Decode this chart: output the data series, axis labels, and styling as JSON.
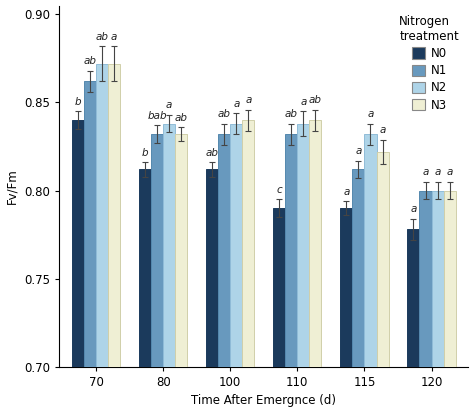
{
  "title": "",
  "xlabel": "Time After Emergnce (d)",
  "ylabel": "Fv/Fm",
  "legend_title": "Nitrogen\ntreatment",
  "legend_labels": [
    "N0",
    "N1",
    "N2",
    "N3"
  ],
  "bar_colors": [
    "#1b3a5c",
    "#6899be",
    "#aed4e8",
    "#efefd4"
  ],
  "bar_edge_colors": [
    "#1b3a5c",
    "#5588ae",
    "#90bcd8",
    "#d0cfaa"
  ],
  "x_groups": [
    70,
    80,
    100,
    110,
    115,
    120
  ],
  "values": {
    "N0": [
      0.84,
      0.812,
      0.812,
      0.79,
      0.79,
      0.778
    ],
    "N1": [
      0.862,
      0.832,
      0.832,
      0.832,
      0.812,
      0.8
    ],
    "N2": [
      0.872,
      0.838,
      0.838,
      0.838,
      0.832,
      0.8
    ],
    "N3": [
      0.872,
      0.832,
      0.84,
      0.84,
      0.822,
      0.8
    ]
  },
  "errors": {
    "N0": [
      0.005,
      0.004,
      0.004,
      0.005,
      0.004,
      0.006
    ],
    "N1": [
      0.006,
      0.005,
      0.006,
      0.006,
      0.005,
      0.005
    ],
    "N2": [
      0.01,
      0.005,
      0.006,
      0.007,
      0.006,
      0.005
    ],
    "N3": [
      0.01,
      0.004,
      0.006,
      0.006,
      0.007,
      0.005
    ]
  },
  "significance_labels": {
    "N0": [
      "b",
      "b",
      "ab",
      "c",
      "a",
      "a"
    ],
    "N1": [
      "ab",
      "bab",
      "ab",
      "ab",
      "a",
      "a"
    ],
    "N2": [
      "ab",
      "a",
      "a",
      "a",
      "a",
      "a"
    ],
    "N3": [
      "a",
      "ab",
      "a",
      "ab",
      "a",
      "a"
    ]
  },
  "ylim": [
    0.7,
    0.905
  ],
  "ybase": 0.7,
  "yticks": [
    0.7,
    0.75,
    0.8,
    0.85,
    0.9
  ],
  "bar_width": 0.18,
  "fig_width": 4.74,
  "fig_height": 4.13,
  "dpi": 100,
  "label_fontsize": 8.5,
  "tick_fontsize": 8.5,
  "sig_fontsize": 7.5,
  "legend_fontsize": 8.5
}
